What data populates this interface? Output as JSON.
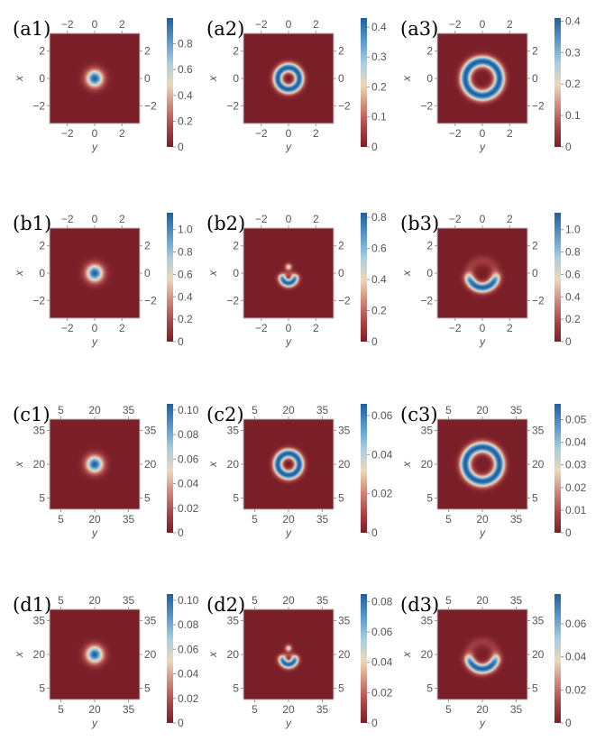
{
  "figure": {
    "colormap": [
      "#7a1e27",
      "#a84347",
      "#cf8a7a",
      "#ecd8b8",
      "#a9cde0",
      "#5b9ac8",
      "#1f5fa0"
    ],
    "colormap_stops": [
      0,
      0.15,
      0.32,
      0.48,
      0.65,
      0.82,
      1.0
    ]
  },
  "chart_data": [
    {
      "label": "(a1)",
      "type": "heatmap",
      "pattern": "gaussian-spot",
      "xlabel": "y",
      "ylabel": "x",
      "range": [
        -3.3,
        3.3
      ],
      "ticks": [
        -2,
        0,
        2
      ],
      "tick_labels": [
        "−2",
        "0",
        "2"
      ],
      "zlim": [
        0,
        1.0
      ],
      "cbar_ticks": [
        0,
        0.2,
        0.4,
        0.6,
        0.8
      ],
      "cbar_labels": [
        "0",
        "0.2",
        "0.4",
        "0.6",
        "0.8"
      ]
    },
    {
      "label": "(a2)",
      "type": "heatmap",
      "pattern": "ring-small",
      "xlabel": "y",
      "ylabel": "x",
      "range": [
        -3.3,
        3.3
      ],
      "ticks": [
        -2,
        0,
        2
      ],
      "tick_labels": [
        "−2",
        "0",
        "2"
      ],
      "zlim": [
        0,
        0.43
      ],
      "cbar_ticks": [
        0,
        0.1,
        0.2,
        0.3,
        0.4
      ],
      "cbar_labels": [
        "0",
        "0.1",
        "0.2",
        "0.3",
        "0.4"
      ]
    },
    {
      "label": "(a3)",
      "type": "heatmap",
      "pattern": "ring-large",
      "xlabel": "y",
      "ylabel": "x",
      "range": [
        -3.3,
        3.3
      ],
      "ticks": [
        -2,
        0,
        2
      ],
      "tick_labels": [
        "−2",
        "0",
        "2"
      ],
      "zlim": [
        0,
        0.41
      ],
      "cbar_ticks": [
        0,
        0.1,
        0.2,
        0.3,
        0.4
      ],
      "cbar_labels": [
        "0",
        "0.1",
        "0.2",
        "0.3",
        "0.4"
      ]
    },
    {
      "label": "(b1)",
      "type": "heatmap",
      "pattern": "gaussian-spot",
      "xlabel": "y",
      "ylabel": "x",
      "range": [
        -3.3,
        3.3
      ],
      "ticks": [
        -2,
        0,
        2
      ],
      "tick_labels": [
        "−2",
        "0",
        "2"
      ],
      "zlim": [
        0,
        1.15
      ],
      "cbar_ticks": [
        0,
        0.2,
        0.4,
        0.6,
        0.8,
        1.0
      ],
      "cbar_labels": [
        "0",
        "0.2",
        "0.4",
        "0.6",
        "0.8",
        "1.0"
      ]
    },
    {
      "label": "(b2)",
      "type": "heatmap",
      "pattern": "crescent-small",
      "xlabel": "y",
      "ylabel": "x",
      "range": [
        -3.3,
        3.3
      ],
      "ticks": [
        -2,
        0,
        2
      ],
      "tick_labels": [
        "−2",
        "0",
        "2"
      ],
      "zlim": [
        0,
        0.83
      ],
      "cbar_ticks": [
        0,
        0.2,
        0.4,
        0.6,
        0.8
      ],
      "cbar_labels": [
        "0",
        "0.2",
        "0.4",
        "0.6",
        "0.8"
      ]
    },
    {
      "label": "(b3)",
      "type": "heatmap",
      "pattern": "crescent-large",
      "xlabel": "y",
      "ylabel": "x",
      "range": [
        -3.3,
        3.3
      ],
      "ticks": [
        -2,
        0,
        2
      ],
      "tick_labels": [
        "−2",
        "0",
        "2"
      ],
      "zlim": [
        0,
        1.15
      ],
      "cbar_ticks": [
        0,
        0.2,
        0.4,
        0.6,
        0.8,
        1.0
      ],
      "cbar_labels": [
        "0",
        "0.2",
        "0.4",
        "0.6",
        "0.8",
        "1.0"
      ]
    },
    {
      "label": "(c1)",
      "type": "heatmap",
      "pattern": "gaussian-spot",
      "xlabel": "y",
      "ylabel": "x",
      "range": [
        0,
        40
      ],
      "ticks": [
        5,
        20,
        35
      ],
      "tick_labels": [
        "5",
        "20",
        "35"
      ],
      "zlim": [
        0,
        0.105
      ],
      "cbar_ticks": [
        0,
        0.02,
        0.04,
        0.06,
        0.08,
        0.1
      ],
      "cbar_labels": [
        "0",
        "0.02",
        "0.04",
        "0.06",
        "0.08",
        "0.10"
      ]
    },
    {
      "label": "(c2)",
      "type": "heatmap",
      "pattern": "ring-small",
      "xlabel": "y",
      "ylabel": "x",
      "range": [
        0,
        40
      ],
      "ticks": [
        5,
        20,
        35
      ],
      "tick_labels": [
        "5",
        "20",
        "35"
      ],
      "zlim": [
        0,
        0.066
      ],
      "cbar_ticks": [
        0,
        0.02,
        0.04,
        0.06
      ],
      "cbar_labels": [
        "0",
        "0.02",
        "0.04",
        "0.06"
      ]
    },
    {
      "label": "(c3)",
      "type": "heatmap",
      "pattern": "ring-large",
      "xlabel": "y",
      "ylabel": "x",
      "range": [
        0,
        40
      ],
      "ticks": [
        5,
        20,
        35
      ],
      "tick_labels": [
        "5",
        "20",
        "35"
      ],
      "zlim": [
        0,
        0.057
      ],
      "cbar_ticks": [
        0,
        0.01,
        0.02,
        0.03,
        0.04,
        0.05
      ],
      "cbar_labels": [
        "0",
        "0.01",
        "0.02",
        "0.03",
        "0.04",
        "0.05"
      ]
    },
    {
      "label": "(d1)",
      "type": "heatmap",
      "pattern": "gaussian-spot",
      "xlabel": "y",
      "ylabel": "x",
      "range": [
        0,
        40
      ],
      "ticks": [
        5,
        20,
        35
      ],
      "tick_labels": [
        "5",
        "20",
        "35"
      ],
      "zlim": [
        0,
        0.105
      ],
      "cbar_ticks": [
        0,
        0.02,
        0.04,
        0.06,
        0.08,
        0.1
      ],
      "cbar_labels": [
        "0",
        "0.02",
        "0.04",
        "0.06",
        "0.08",
        "0.10"
      ]
    },
    {
      "label": "(d2)",
      "type": "heatmap",
      "pattern": "crescent-small",
      "xlabel": "y",
      "ylabel": "x",
      "range": [
        0,
        40
      ],
      "ticks": [
        5,
        20,
        35
      ],
      "tick_labels": [
        "5",
        "20",
        "35"
      ],
      "zlim": [
        0,
        0.085
      ],
      "cbar_ticks": [
        0,
        0.02,
        0.04,
        0.06,
        0.08
      ],
      "cbar_labels": [
        "0",
        "0.02",
        "0.04",
        "0.06",
        "0.08"
      ]
    },
    {
      "label": "(d3)",
      "type": "heatmap",
      "pattern": "crescent-large",
      "xlabel": "y",
      "ylabel": "x",
      "range": [
        0,
        40
      ],
      "ticks": [
        5,
        20,
        35
      ],
      "tick_labels": [
        "5",
        "20",
        "35"
      ],
      "zlim": [
        0,
        0.078
      ],
      "cbar_ticks": [
        0,
        0.02,
        0.04,
        0.06
      ],
      "cbar_labels": [
        "0",
        "0.02",
        "0.04",
        "0.06"
      ]
    }
  ]
}
